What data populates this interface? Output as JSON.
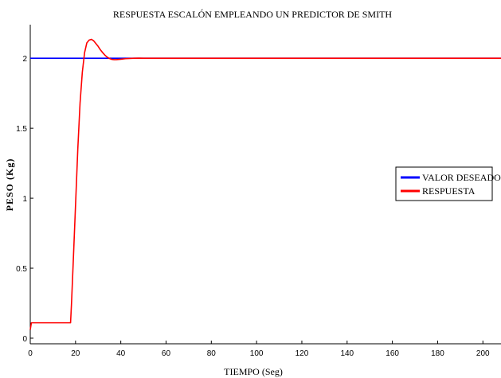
{
  "chart_data": {
    "type": "line",
    "title": "RESPUESTA ESCALÓN EMPLEANDO UN PREDICTOR DE SMITH",
    "xlabel": "TIEMPO (Seg)",
    "ylabel": "PESO (Kg)",
    "xlim": [
      0,
      208
    ],
    "ylim": [
      -0.04,
      2.24
    ],
    "x_ticks": [
      "0",
      "20",
      "40",
      "60",
      "80",
      "100",
      "120",
      "140",
      "160",
      "180",
      "200"
    ],
    "y_ticks": [
      "0",
      "0.5",
      "1",
      "1.5",
      "2"
    ],
    "grid": false,
    "legend_position": "right",
    "series": [
      {
        "name": "VALOR DESEADO",
        "color": "#0000ff",
        "x": [
          0,
          208
        ],
        "y": [
          2,
          2
        ]
      },
      {
        "name": "RESPUESTA",
        "color": "#ff0000",
        "x": [
          0,
          0.5,
          1,
          17.8,
          18.2,
          19,
          20,
          21,
          22,
          23,
          24,
          25,
          26,
          27,
          28,
          29,
          30,
          31,
          32,
          33,
          34,
          35,
          36,
          37,
          38,
          40,
          42,
          44,
          46,
          48,
          50,
          55,
          60,
          80,
          100,
          150,
          208
        ],
        "y": [
          0.06,
          0.11,
          0.11,
          0.11,
          0.24,
          0.55,
          0.95,
          1.35,
          1.68,
          1.9,
          2.04,
          2.11,
          2.13,
          2.135,
          2.125,
          2.105,
          2.085,
          2.06,
          2.04,
          2.022,
          2.008,
          1.998,
          1.992,
          1.99,
          1.99,
          1.993,
          1.997,
          1.999,
          2.0,
          2.001,
          2.0,
          2.0,
          2.0,
          2.0,
          2.0,
          2.0,
          2.0
        ]
      }
    ]
  }
}
